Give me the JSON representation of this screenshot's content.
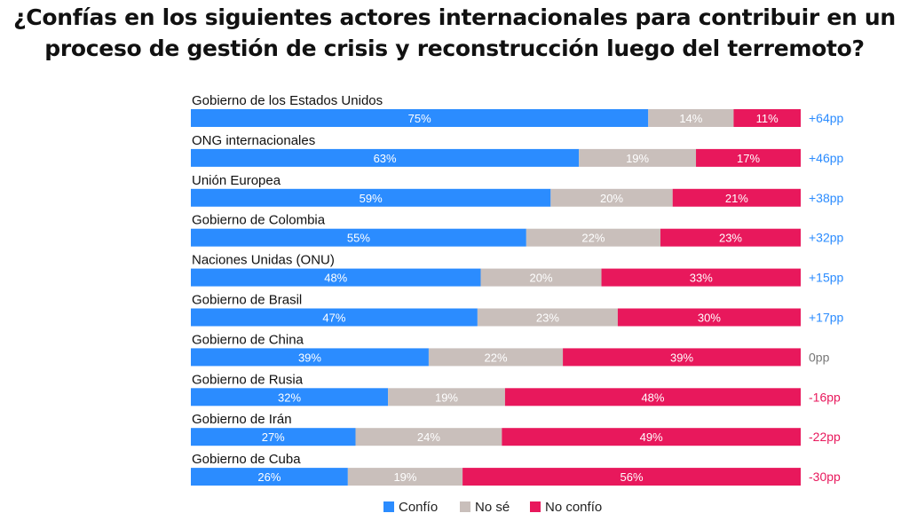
{
  "title": {
    "line1": "¿Confías en los siguientes actores internacionales para contribuir en un",
    "line2": "proceso de gestión de crisis y reconstrucción luego del terremoto?"
  },
  "colors": {
    "confio": "#2b8cff",
    "no_se": "#c9bfbb",
    "no_confio": "#e8185c",
    "positive": "#2b8cff",
    "zero": "#777777",
    "negative": "#e8185c"
  },
  "legend": [
    "Confío",
    "No sé",
    "No confío"
  ],
  "chart_data": {
    "type": "bar",
    "orientation": "horizontal",
    "stacked": true,
    "categories": [
      "Gobierno de los Estados Unidos",
      "ONG internacionales",
      "Unión Europea",
      "Gobierno de Colombia",
      "Naciones Unidas (ONU)",
      "Gobierno de Brasil",
      "Gobierno de China",
      "Gobierno de Rusia",
      "Gobierno de Irán",
      "Gobierno de Cuba"
    ],
    "series": [
      {
        "name": "Confío",
        "values": [
          75,
          63,
          59,
          55,
          48,
          47,
          39,
          32,
          27,
          26
        ]
      },
      {
        "name": "No sé",
        "values": [
          14,
          19,
          20,
          22,
          20,
          23,
          22,
          19,
          24,
          19
        ]
      },
      {
        "name": "No confío",
        "values": [
          11,
          17,
          21,
          23,
          33,
          30,
          39,
          48,
          49,
          56
        ]
      }
    ],
    "net": [
      "+64pp",
      "+46pp",
      "+38pp",
      "+32pp",
      "+15pp",
      "+17pp",
      "0pp",
      "-16pp",
      "-22pp",
      "-30pp"
    ],
    "legend_position": "bottom"
  }
}
